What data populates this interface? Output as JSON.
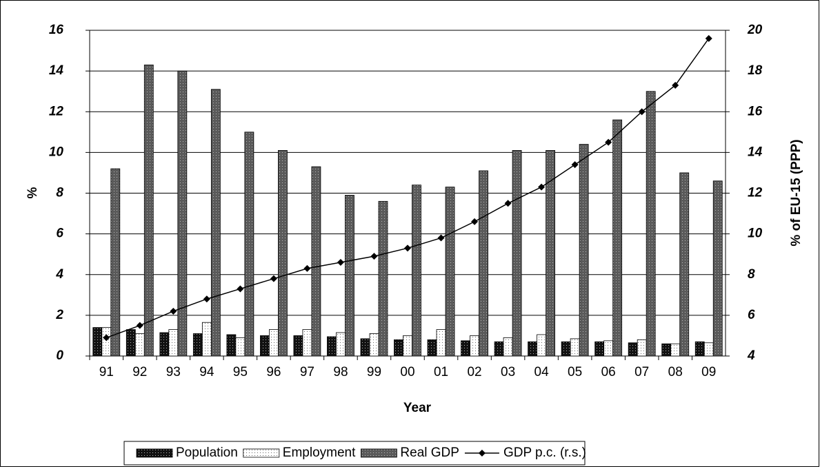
{
  "chart_data": {
    "type": "bar",
    "x_label": "Year",
    "y_label": "%",
    "y2_label": "% of EU-15 (PPP)",
    "categories": [
      "91",
      "92",
      "93",
      "94",
      "95",
      "96",
      "97",
      "98",
      "99",
      "00",
      "01",
      "02",
      "03",
      "04",
      "05",
      "06",
      "07",
      "08",
      "09"
    ],
    "series": [
      {
        "name": "Population",
        "color": "#111111",
        "values": [
          1.4,
          1.3,
          1.15,
          1.1,
          1.05,
          1.0,
          1.0,
          0.95,
          0.85,
          0.8,
          0.8,
          0.75,
          0.7,
          0.7,
          0.7,
          0.7,
          0.65,
          0.6,
          0.7
        ]
      },
      {
        "name": "Employment",
        "color": "#ffffff",
        "values": [
          1.4,
          1.1,
          1.3,
          1.65,
          0.9,
          1.3,
          1.3,
          1.15,
          1.1,
          1.0,
          1.3,
          1.0,
          0.9,
          1.05,
          0.85,
          0.75,
          0.8,
          0.6,
          0.65
        ]
      },
      {
        "name": "Real GDP",
        "color": "#5a5a5a",
        "values": [
          9.2,
          14.3,
          14.0,
          13.1,
          11.0,
          10.1,
          9.3,
          7.9,
          7.6,
          8.4,
          8.3,
          9.1,
          10.1,
          10.1,
          10.4,
          11.6,
          13.0,
          9.0,
          8.6
        ]
      },
      {
        "name": "GDP p.c. (r.s.)",
        "color": "#000000",
        "type": "line",
        "axis": "y2",
        "values": [
          4.9,
          5.5,
          6.2,
          6.8,
          7.3,
          7.8,
          8.3,
          8.6,
          8.9,
          9.3,
          9.8,
          10.6,
          11.5,
          12.3,
          13.4,
          14.5,
          16.0,
          17.3,
          19.6
        ]
      }
    ],
    "ylim": [
      0,
      16
    ],
    "yticks": [
      0,
      2,
      4,
      6,
      8,
      10,
      12,
      14,
      16
    ],
    "y2lim": [
      4,
      20
    ],
    "y2ticks": [
      4,
      6,
      8,
      10,
      12,
      14,
      16,
      18,
      20
    ],
    "grid": true,
    "legend": "bottom"
  }
}
